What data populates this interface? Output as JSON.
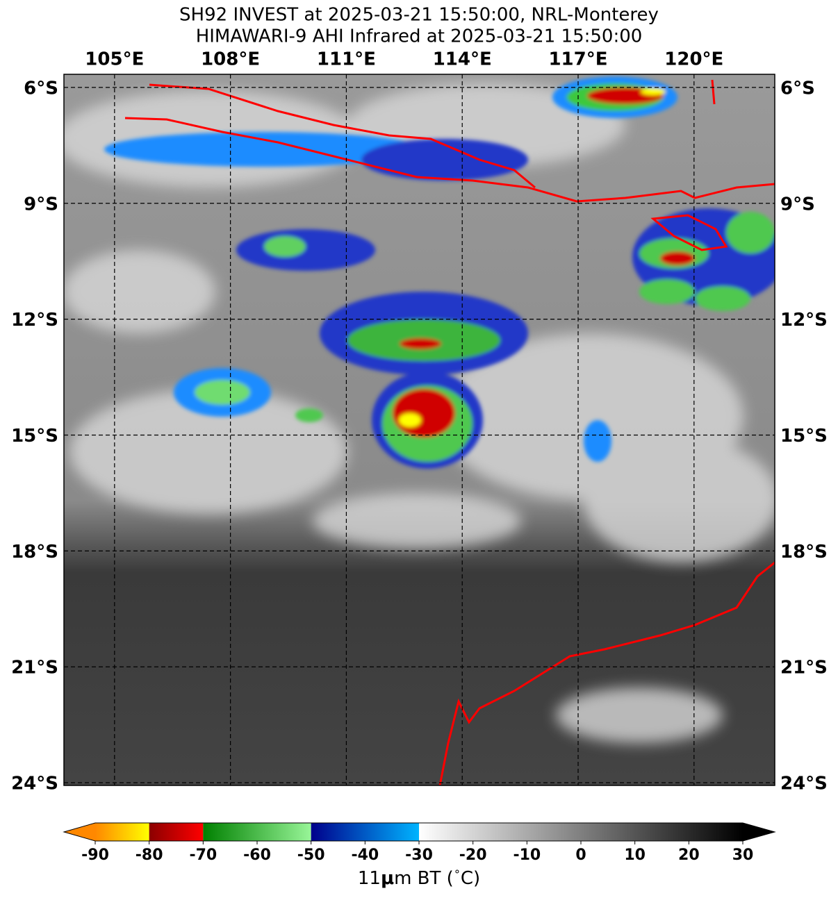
{
  "title_lines": [
    "SH92 INVEST at 2025-03-21 15:50:00, NRL-Monterey",
    "HIMAWARI-9 AHI Infrared at 2025-03-21 15:50:00"
  ],
  "map": {
    "lonlim": [
      103.69,
      122.09
    ],
    "latlim": [
      -24.07,
      -5.66
    ],
    "lon_ticks": [
      {
        "value": 105,
        "label": "105°E"
      },
      {
        "value": 108,
        "label": "108°E"
      },
      {
        "value": 111,
        "label": "111°E"
      },
      {
        "value": 114,
        "label": "114°E"
      },
      {
        "value": 117,
        "label": "117°E"
      },
      {
        "value": 120,
        "label": "120°E"
      }
    ],
    "lat_ticks": [
      {
        "value": -6,
        "label": "6°S"
      },
      {
        "value": -9,
        "label": "9°S"
      },
      {
        "value": -12,
        "label": "12°S"
      },
      {
        "value": -15,
        "label": "15°S"
      },
      {
        "value": -18,
        "label": "18°S"
      },
      {
        "value": -21,
        "label": "21°S"
      },
      {
        "value": -24,
        "label": "24°S"
      }
    ],
    "grid": true
  },
  "colorbar": {
    "lim": [
      -90,
      30
    ],
    "ticks": [
      -90,
      -80,
      -70,
      -60,
      -50,
      -40,
      -30,
      -20,
      -10,
      0,
      10,
      20,
      30
    ],
    "label_parts": [
      "11",
      "μ",
      "m BT (",
      "∘",
      "C)"
    ],
    "segments": [
      {
        "range": [
          -90,
          -80
        ],
        "colors": [
          "#ff8800",
          "#ffff00"
        ]
      },
      {
        "range": [
          -80,
          -70
        ],
        "colors": [
          "#8b0000",
          "#ff0000"
        ]
      },
      {
        "range": [
          -70,
          -50
        ],
        "colors": [
          "#008000",
          "#98f598"
        ]
      },
      {
        "range": [
          -50,
          -30
        ],
        "colors": [
          "#00008b",
          "#00b4ff"
        ]
      },
      {
        "range": [
          -30,
          30
        ],
        "colors": [
          "#ffffff",
          "#000000"
        ]
      }
    ],
    "under_color": "#ff8800",
    "over_color": "#000000"
  }
}
